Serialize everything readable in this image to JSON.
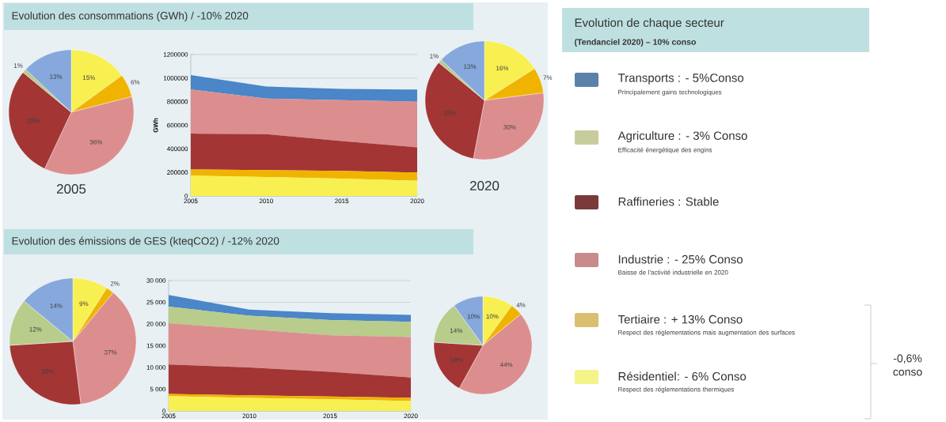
{
  "chart_data": [
    {
      "type": "pie",
      "title": "2005",
      "categories": [
        null,
        null,
        null,
        null,
        null,
        null
      ],
      "values": [
        15,
        6,
        36,
        29,
        1,
        13
      ],
      "value_labels": [
        "15%",
        "6%",
        "36%",
        "29%",
        "1%",
        "13%"
      ],
      "colors": [
        "#f8f050",
        "#f0b400",
        "#dc8e8e",
        "#a33535",
        "#b8cc8c",
        "#86a8dc"
      ]
    },
    {
      "type": "area",
      "title": "Evolution des consommations (GWh) / -10% 2020",
      "ylabel": "GWh",
      "stacked": true,
      "grid": "y",
      "x": [
        2005,
        2010,
        2015,
        2020
      ],
      "xlim": [
        2005,
        2020
      ],
      "xticks": [
        2005,
        2010,
        2015,
        2020
      ],
      "ylim": [
        0,
        1200000
      ],
      "yticks": [
        0,
        200000,
        400000,
        600000,
        800000,
        1000000,
        1200000
      ],
      "series": [
        {
          "color": "#f8f050",
          "values": [
            173000,
            160000,
            147000,
            129000
          ]
        },
        {
          "color": "#f0b400",
          "values": [
            52000,
            59000,
            65000,
            70000
          ]
        },
        {
          "color": "#a33535",
          "values": [
            304000,
            305000,
            253000,
            214000
          ]
        },
        {
          "color": "#dc8e8e",
          "values": [
            374000,
            302000,
            348000,
            387000
          ]
        },
        {
          "color": "#4a86c8",
          "values": [
            122000,
            103000,
            95000,
            103000
          ]
        }
      ]
    },
    {
      "type": "pie",
      "title": "2020",
      "categories": [
        null,
        null,
        null,
        null,
        null,
        null
      ],
      "values": [
        16,
        7,
        30,
        33,
        1,
        13
      ],
      "value_labels": [
        "16%",
        "7%",
        "30%",
        "33%",
        "1%",
        "13%"
      ],
      "colors": [
        "#f8f050",
        "#f0b400",
        "#dc8e8e",
        "#a33535",
        "#b8cc8c",
        "#86a8dc"
      ]
    },
    {
      "type": "pie",
      "categories": [
        null,
        null,
        null,
        null,
        null,
        null
      ],
      "values": [
        9,
        2,
        37,
        26,
        12,
        14
      ],
      "value_labels": [
        "9%",
        "2%",
        "37%",
        "26%",
        "12%",
        "14%"
      ],
      "colors": [
        "#f8f050",
        "#f0b400",
        "#dc8e8e",
        "#a33535",
        "#b8cc8c",
        "#86a8dc"
      ]
    },
    {
      "type": "area",
      "title": "Evolution des émissions de GES (kteqCO2) / -12% 2020",
      "stacked": true,
      "grid": "y",
      "x": [
        2005,
        2010,
        2015,
        2020
      ],
      "xlim": [
        2005,
        2020
      ],
      "xticks": [
        2005,
        2010,
        2015,
        2020
      ],
      "ylim": [
        0,
        30000
      ],
      "yticks": [
        0,
        {
          "value": 5000,
          "label": "5 000"
        },
        {
          "value": 10000,
          "label": "10 000"
        },
        {
          "value": 15000,
          "label": "15 000"
        },
        {
          "value": 20000,
          "label": "20 000"
        },
        {
          "value": 25000,
          "label": "25 000"
        },
        {
          "value": 30000,
          "label": "30 000"
        }
      ],
      "series": [
        {
          "color": "#f8f050",
          "values": [
            3400,
            3000,
            2700,
            2300
          ]
        },
        {
          "color": "#f0b400",
          "values": [
            500,
            600,
            600,
            700
          ]
        },
        {
          "color": "#a33535",
          "values": [
            6800,
            6400,
            5700,
            4700
          ]
        },
        {
          "color": "#dc8e8e",
          "values": [
            9500,
            8800,
            8400,
            9300
          ]
        },
        {
          "color": "#b8cc8c",
          "values": [
            3800,
            3100,
            3500,
            3500
          ]
        },
        {
          "color": "#4a86c8",
          "values": [
            2700,
            1400,
            1600,
            1600
          ]
        }
      ]
    },
    {
      "type": "pie",
      "categories": [
        null,
        null,
        null,
        null,
        null,
        null
      ],
      "values": [
        10,
        4,
        44,
        18,
        14,
        10
      ],
      "value_labels": [
        "10%",
        "4%",
        "44%",
        "18%",
        "14%",
        "10%"
      ],
      "colors": [
        "#f8f050",
        "#f0b400",
        "#dc8e8e",
        "#a33535",
        "#b8cc8c",
        "#86a8dc"
      ]
    },
    {
      "type": "other",
      "title": "Evolution de chaque secteur",
      "subtitle": "(Tendanciel 2020) – 10% conso",
      "categories": [
        "Transports : - 5%Conso",
        "Agriculture : - 3% Conso",
        "Raffineries :   Stable",
        "Industrie : - 25% Conso",
        "Tertiaire : + 13% Conso",
        "Résidentiel: - 6% Conso"
      ],
      "colors": [
        "#5a82a8",
        "#c8cc9c",
        "#7a3a3a",
        "#c98a8a",
        "#d8c070",
        "#f4f48a"
      ],
      "annotations": [
        "Principalement gains technologiques",
        "Efficacité énergétique des engins",
        "Baisse de l'activité industrielle en 2020",
        "Respect des réglementations mais augmentation des surfaces",
        "Respect des réglementations thermiques",
        "-0,6% conso"
      ]
    }
  ]
}
